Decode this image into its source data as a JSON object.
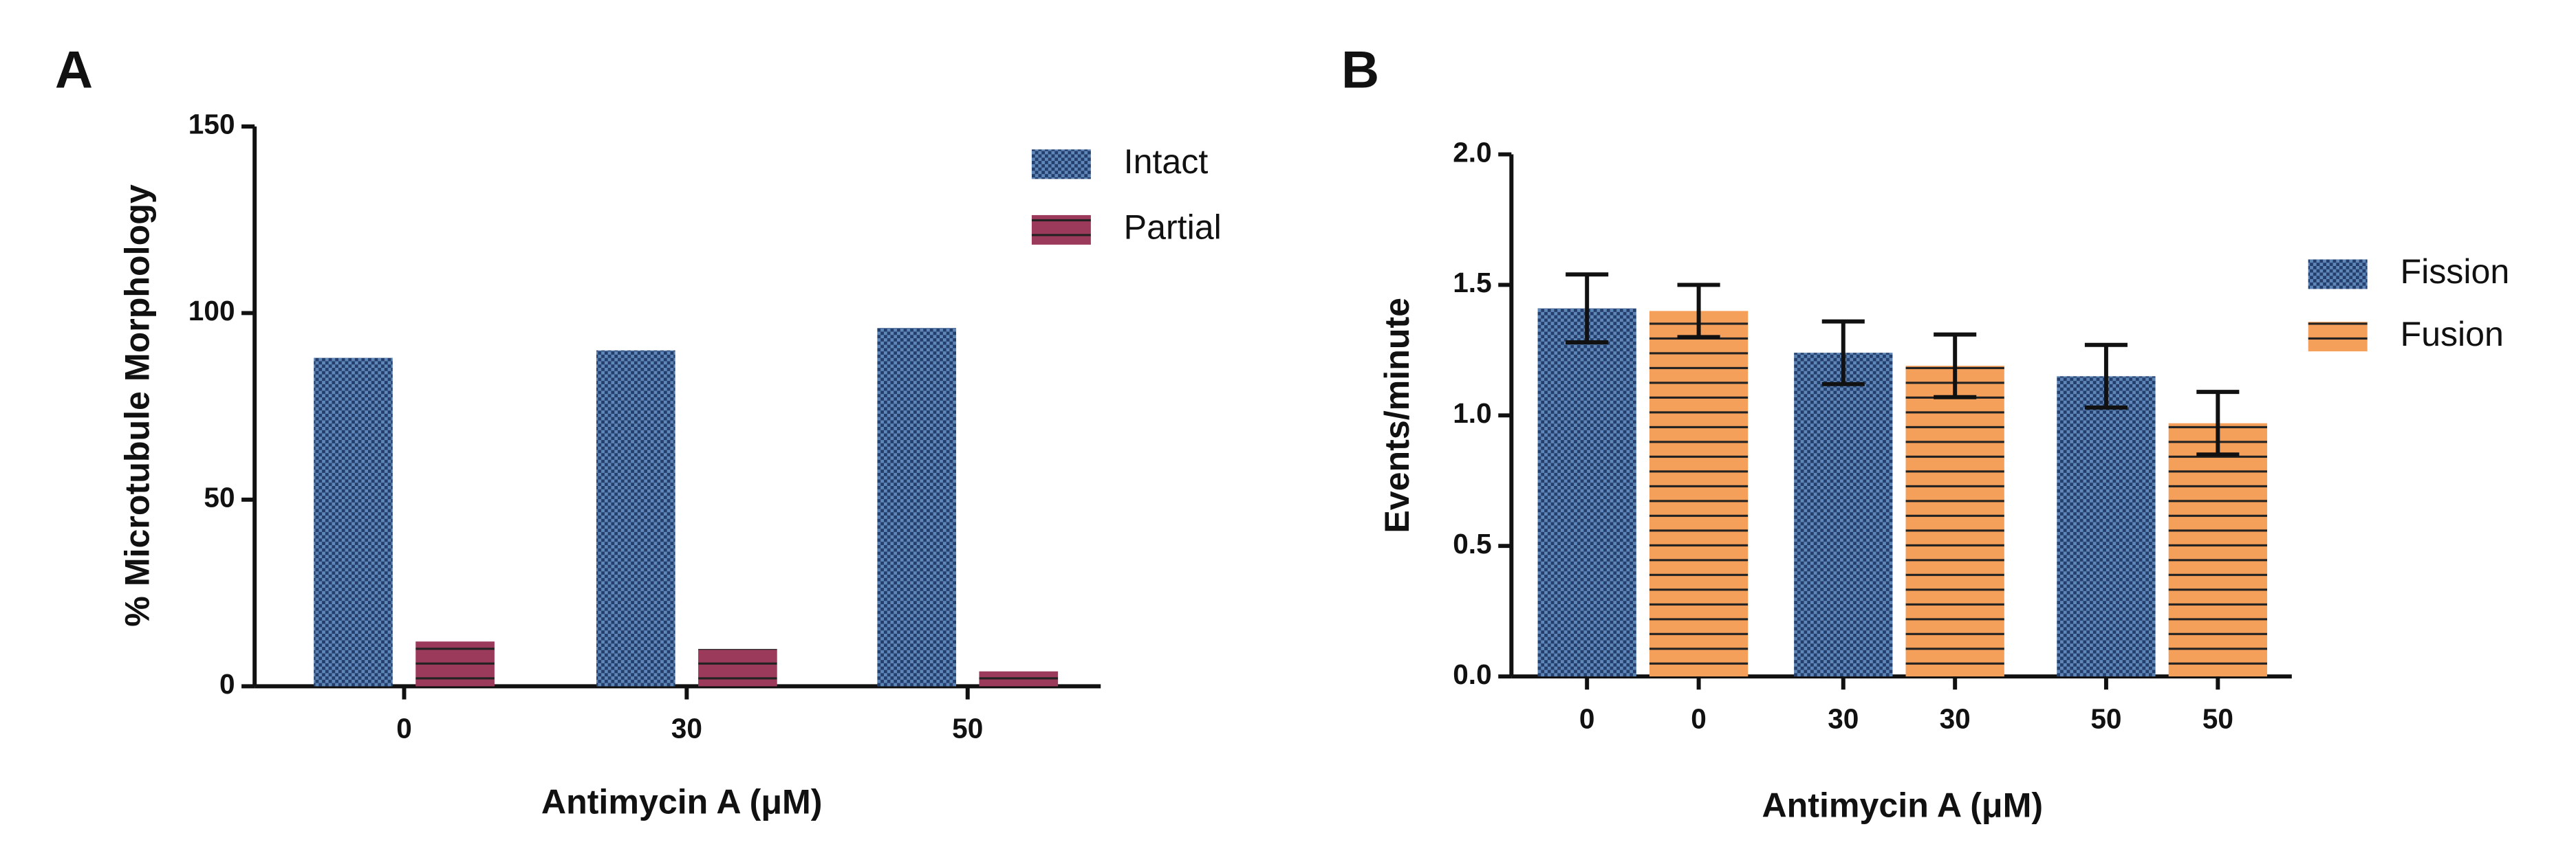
{
  "chart_data": [
    {
      "type": "bar",
      "panel_label": "A",
      "x_label": "Antimycin A (μM)",
      "y_label": "% Microtubule Morphology",
      "categories": [
        "0",
        "30",
        "50"
      ],
      "series": [
        {
          "name": "Intact",
          "color": "#243f6b",
          "pattern": "checker",
          "values": [
            88,
            90,
            96
          ]
        },
        {
          "name": "Partial",
          "color": "#9c3a5c",
          "pattern": "hlines",
          "values": [
            12,
            10,
            4
          ]
        }
      ],
      "ylim": [
        0,
        150
      ],
      "yticks": [
        0,
        50,
        100,
        150
      ],
      "legend": "upper right"
    },
    {
      "type": "bar",
      "panel_label": "B",
      "x_label": "Antimycin A (μM)",
      "y_label": "Events/minute",
      "categories": [
        "0",
        "30",
        "50"
      ],
      "series": [
        {
          "name": "Fission",
          "color": "#243f6b",
          "pattern": "checker",
          "values": [
            1.41,
            1.24,
            1.15
          ],
          "errors": [
            0.13,
            0.12,
            0.12
          ]
        },
        {
          "name": "Fusion",
          "color": "#f5a05a",
          "pattern": "hlines",
          "values": [
            1.4,
            1.19,
            0.97
          ],
          "errors": [
            0.1,
            0.12,
            0.12
          ]
        }
      ],
      "ylim": [
        0,
        2
      ],
      "yticks": [
        {
          "value": 0,
          "label": "0.0"
        },
        0.5,
        {
          "value": 1,
          "label": "1.0"
        },
        1.5,
        {
          "value": 2,
          "label": "2.0"
        }
      ],
      "legend": "right"
    }
  ]
}
